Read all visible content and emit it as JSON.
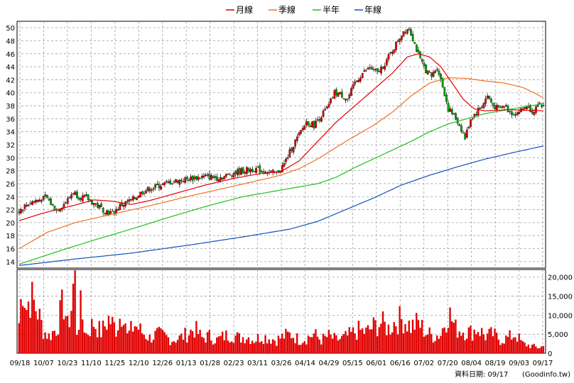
{
  "chart_data": {
    "type": "stock-candlestick-with-volume",
    "legend": [
      {
        "key": "ma_month",
        "label": "月線",
        "color": "#e00000"
      },
      {
        "key": "ma_quarter",
        "label": "季線",
        "color": "#f07020"
      },
      {
        "key": "ma_half",
        "label": "半年",
        "color": "#20c020"
      },
      {
        "key": "ma_year",
        "label": "年線",
        "color": "#1050c0"
      }
    ],
    "price_axis": {
      "min": 13,
      "max": 51,
      "ticks": [
        14,
        16,
        18,
        20,
        22,
        24,
        26,
        28,
        30,
        32,
        34,
        36,
        38,
        40,
        42,
        44,
        46,
        48,
        50
      ]
    },
    "volume_axis": {
      "min": 0,
      "max": 22000,
      "ticks": [
        0,
        5000,
        10000,
        15000,
        20000
      ],
      "tick_labels": [
        "0",
        "5,000",
        "10,000",
        "15,000",
        "20,000"
      ]
    },
    "x_tick_labels": [
      "09/18",
      "10/07",
      "10/23",
      "11/10",
      "11/25",
      "12/10",
      "12/26",
      "01/13",
      "01/28",
      "02/23",
      "03/11",
      "03/26",
      "04/14",
      "04/29",
      "05/15",
      "06/01",
      "06/16",
      "07/02",
      "07/20",
      "08/04",
      "08/19",
      "09/03",
      "09/17"
    ],
    "price_keypoints": [
      [
        0,
        21.8
      ],
      [
        5,
        23.0
      ],
      [
        10,
        23.5
      ],
      [
        15,
        23.8
      ],
      [
        18,
        22.5
      ],
      [
        20,
        22.0
      ],
      [
        23,
        22.6
      ],
      [
        26,
        23.5
      ],
      [
        29,
        24.8
      ],
      [
        32,
        24.0
      ],
      [
        36,
        23.8
      ],
      [
        40,
        23.0
      ],
      [
        45,
        22.0
      ],
      [
        50,
        21.4
      ],
      [
        54,
        22.6
      ],
      [
        58,
        23.1
      ],
      [
        62,
        23.8
      ],
      [
        66,
        24.8
      ],
      [
        70,
        25.2
      ],
      [
        76,
        25.8
      ],
      [
        82,
        26.3
      ],
      [
        88,
        26.6
      ],
      [
        94,
        26.9
      ],
      [
        100,
        27.1
      ],
      [
        106,
        26.9
      ],
      [
        110,
        27.1
      ],
      [
        114,
        27.6
      ],
      [
        120,
        28.0
      ],
      [
        126,
        28.3
      ],
      [
        130,
        28.0
      ],
      [
        134,
        27.7
      ],
      [
        138,
        27.6
      ],
      [
        142,
        29.0
      ],
      [
        146,
        31.5
      ],
      [
        150,
        33.5
      ],
      [
        154,
        35.5
      ],
      [
        158,
        35.0
      ],
      [
        162,
        36.5
      ],
      [
        166,
        38.0
      ],
      [
        169,
        40.0
      ],
      [
        172,
        39.8
      ],
      [
        176,
        39.0
      ],
      [
        180,
        41.5
      ],
      [
        184,
        43.0
      ],
      [
        188,
        43.8
      ],
      [
        192,
        43.0
      ],
      [
        196,
        44.5
      ],
      [
        200,
        46.5
      ],
      [
        203,
        48.0
      ],
      [
        206,
        49.5
      ],
      [
        209,
        50.0
      ],
      [
        212,
        47.5
      ],
      [
        215,
        45.0
      ],
      [
        218,
        43.5
      ],
      [
        221,
        42.5
      ],
      [
        224,
        44.0
      ],
      [
        227,
        41.0
      ],
      [
        230,
        37.5
      ],
      [
        233,
        36.5
      ],
      [
        236,
        35.0
      ],
      [
        239,
        33.0
      ],
      [
        242,
        36.0
      ],
      [
        245,
        37.0
      ],
      [
        248,
        38.0
      ],
      [
        251,
        39.5
      ],
      [
        254,
        38.0
      ],
      [
        257,
        37.5
      ],
      [
        260,
        38.0
      ],
      [
        263,
        37.0
      ],
      [
        266,
        36.8
      ],
      [
        269,
        37.3
      ],
      [
        272,
        38.0
      ],
      [
        275,
        37.2
      ],
      [
        278,
        37.8
      ],
      [
        281,
        38.0
      ]
    ],
    "ma_month_keypoints": [
      [
        0,
        20.3
      ],
      [
        12,
        21.4
      ],
      [
        20,
        22.0
      ],
      [
        30,
        22.7
      ],
      [
        40,
        23.5
      ],
      [
        50,
        23.3
      ],
      [
        60,
        22.8
      ],
      [
        70,
        23.4
      ],
      [
        85,
        24.6
      ],
      [
        100,
        25.8
      ],
      [
        115,
        26.8
      ],
      [
        130,
        27.6
      ],
      [
        140,
        27.8
      ],
      [
        150,
        29.5
      ],
      [
        160,
        32.5
      ],
      [
        170,
        35.5
      ],
      [
        180,
        38.0
      ],
      [
        190,
        40.5
      ],
      [
        200,
        43.0
      ],
      [
        208,
        45.5
      ],
      [
        214,
        46.0
      ],
      [
        220,
        45.5
      ],
      [
        226,
        44.0
      ],
      [
        232,
        41.5
      ],
      [
        238,
        39.0
      ],
      [
        244,
        37.5
      ],
      [
        250,
        37.2
      ],
      [
        256,
        37.3
      ],
      [
        262,
        37.4
      ],
      [
        270,
        37.3
      ],
      [
        276,
        37.3
      ],
      [
        281,
        37.2
      ]
    ],
    "ma_quarter_keypoints": [
      [
        0,
        16.0
      ],
      [
        15,
        18.5
      ],
      [
        30,
        20.0
      ],
      [
        50,
        21.3
      ],
      [
        70,
        22.6
      ],
      [
        90,
        24.0
      ],
      [
        110,
        25.3
      ],
      [
        130,
        26.6
      ],
      [
        140,
        27.3
      ],
      [
        150,
        28.3
      ],
      [
        160,
        29.8
      ],
      [
        175,
        32.5
      ],
      [
        190,
        35.0
      ],
      [
        200,
        37.0
      ],
      [
        210,
        39.5
      ],
      [
        220,
        41.5
      ],
      [
        230,
        42.3
      ],
      [
        240,
        42.2
      ],
      [
        250,
        41.8
      ],
      [
        260,
        41.5
      ],
      [
        270,
        40.8
      ],
      [
        276,
        40.0
      ],
      [
        281,
        39.2
      ]
    ],
    "ma_half_keypoints": [
      [
        0,
        13.6
      ],
      [
        20,
        15.5
      ],
      [
        40,
        17.3
      ],
      [
        60,
        19.0
      ],
      [
        80,
        20.8
      ],
      [
        100,
        22.5
      ],
      [
        120,
        24.0
      ],
      [
        140,
        25.0
      ],
      [
        150,
        25.5
      ],
      [
        160,
        26.0
      ],
      [
        170,
        27.0
      ],
      [
        180,
        28.5
      ],
      [
        195,
        30.5
      ],
      [
        210,
        32.5
      ],
      [
        220,
        34.0
      ],
      [
        230,
        35.2
      ],
      [
        240,
        36.0
      ],
      [
        250,
        36.8
      ],
      [
        260,
        37.3
      ],
      [
        270,
        37.8
      ],
      [
        281,
        38.3
      ]
    ],
    "ma_year_keypoints": [
      [
        0,
        13.4
      ],
      [
        30,
        14.4
      ],
      [
        60,
        15.3
      ],
      [
        90,
        16.5
      ],
      [
        120,
        17.8
      ],
      [
        145,
        19.0
      ],
      [
        160,
        20.2
      ],
      [
        175,
        22.0
      ],
      [
        190,
        23.8
      ],
      [
        205,
        25.8
      ],
      [
        220,
        27.3
      ],
      [
        235,
        28.6
      ],
      [
        250,
        29.8
      ],
      [
        265,
        30.8
      ],
      [
        281,
        31.8
      ]
    ],
    "volume_keypoints": [
      [
        0,
        8000
      ],
      [
        2,
        19000
      ],
      [
        4,
        12000
      ],
      [
        6,
        15000
      ],
      [
        8,
        13000
      ],
      [
        10,
        11000
      ],
      [
        13,
        6000
      ],
      [
        16,
        4500
      ],
      [
        20,
        6500
      ],
      [
        22,
        10000
      ],
      [
        24,
        13500
      ],
      [
        26,
        7000
      ],
      [
        28,
        12000
      ],
      [
        30,
        23000
      ],
      [
        31,
        6000
      ],
      [
        33,
        11500
      ],
      [
        36,
        5000
      ],
      [
        40,
        8000
      ],
      [
        44,
        5500
      ],
      [
        48,
        9000
      ],
      [
        52,
        6500
      ],
      [
        56,
        12500
      ],
      [
        58,
        4500
      ],
      [
        62,
        7500
      ],
      [
        66,
        5500
      ],
      [
        70,
        4000
      ],
      [
        74,
        5000
      ],
      [
        78,
        4500
      ],
      [
        82,
        3500
      ],
      [
        86,
        4000
      ],
      [
        90,
        5000
      ],
      [
        94,
        6500
      ],
      [
        98,
        4000
      ],
      [
        102,
        4500
      ],
      [
        106,
        3500
      ],
      [
        110,
        4500
      ],
      [
        114,
        5000
      ],
      [
        118,
        4000
      ],
      [
        122,
        4500
      ],
      [
        126,
        3500
      ],
      [
        130,
        4500
      ],
      [
        134,
        4000
      ],
      [
        138,
        3500
      ],
      [
        142,
        4500
      ],
      [
        146,
        5000
      ],
      [
        150,
        3500
      ],
      [
        154,
        4000
      ],
      [
        158,
        5000
      ],
      [
        162,
        3500
      ],
      [
        166,
        4500
      ],
      [
        170,
        3500
      ],
      [
        174,
        4000
      ],
      [
        178,
        5000
      ],
      [
        182,
        6000
      ],
      [
        186,
        5500
      ],
      [
        190,
        7000
      ],
      [
        194,
        8000
      ],
      [
        198,
        6500
      ],
      [
        202,
        8500
      ],
      [
        206,
        9000
      ],
      [
        210,
        7000
      ],
      [
        214,
        8000
      ],
      [
        218,
        5500
      ],
      [
        222,
        4500
      ],
      [
        226,
        5000
      ],
      [
        230,
        11000
      ],
      [
        234,
        6500
      ],
      [
        238,
        6000
      ],
      [
        242,
        5500
      ],
      [
        246,
        6500
      ],
      [
        250,
        4500
      ],
      [
        254,
        5000
      ],
      [
        258,
        3500
      ],
      [
        262,
        4000
      ],
      [
        266,
        5000
      ],
      [
        270,
        2500
      ],
      [
        274,
        2000
      ],
      [
        278,
        1500
      ],
      [
        281,
        1800
      ]
    ]
  },
  "footer": {
    "data_date_label": "資料日期: 09/17",
    "source_label": "(Goodinfo.tw)"
  }
}
